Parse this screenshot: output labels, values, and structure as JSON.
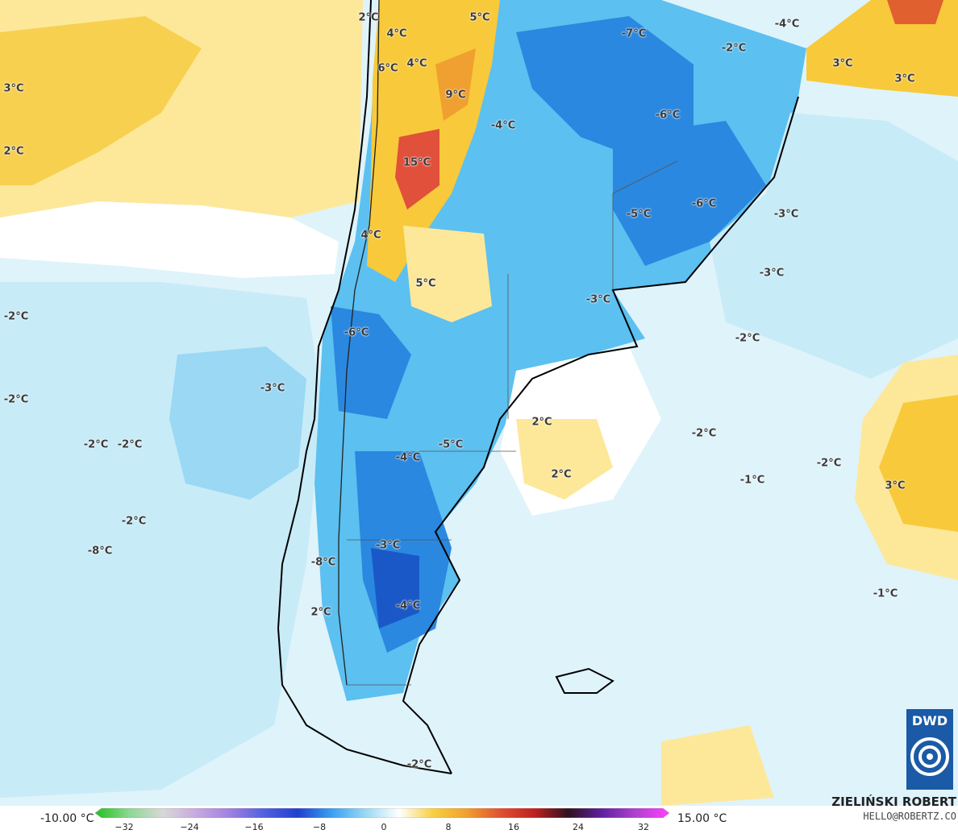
{
  "colors": {
    "warm_light": "#fde89a",
    "warm": "#f8c93a",
    "warm_orange": "#f0a030",
    "hot": "#e0503a",
    "cold_light": "#c8ebf8",
    "cold": "#9ad8f4",
    "cold_mid": "#5cc0f0",
    "cold_deep": "#2a88e0",
    "cold_darkest": "#1a58c8",
    "land_border": "#000000",
    "dwd_blue": "#1a5aa6"
  },
  "labels": [
    {
      "id": "l1",
      "text": "2°C"
    },
    {
      "id": "l2",
      "text": "5°C"
    },
    {
      "id": "l3",
      "text": "4°C"
    },
    {
      "id": "l4",
      "text": "6°C"
    },
    {
      "id": "l5",
      "text": "4°C"
    },
    {
      "id": "l6",
      "text": "3°C"
    },
    {
      "id": "l7",
      "text": "2°C"
    },
    {
      "id": "l8",
      "text": "9°C"
    },
    {
      "id": "l9",
      "text": "15°C"
    },
    {
      "id": "l10",
      "text": "4°C"
    },
    {
      "id": "l11",
      "text": "5°C"
    },
    {
      "id": "l12",
      "text": "-4°C"
    },
    {
      "id": "l13",
      "text": "-7°C"
    },
    {
      "id": "l14",
      "text": "-2°C"
    },
    {
      "id": "l15",
      "text": "-4°C"
    },
    {
      "id": "l16",
      "text": "3°C"
    },
    {
      "id": "l17",
      "text": "3°C"
    },
    {
      "id": "l18",
      "text": "-6°C"
    },
    {
      "id": "l19",
      "text": "-6°C"
    },
    {
      "id": "l20",
      "text": "-5°C"
    },
    {
      "id": "l21",
      "text": "-3°C"
    },
    {
      "id": "l22",
      "text": "-3°C"
    },
    {
      "id": "l23",
      "text": "-3°C"
    },
    {
      "id": "l24",
      "text": "-2°C"
    },
    {
      "id": "l25",
      "text": "-2°C"
    },
    {
      "id": "l26",
      "text": "-6°C"
    },
    {
      "id": "l27",
      "text": "-2°C"
    },
    {
      "id": "l28",
      "text": "-3°C"
    },
    {
      "id": "l29",
      "text": "2°C"
    },
    {
      "id": "l30",
      "text": "-2°C"
    },
    {
      "id": "l31",
      "text": "-2°C"
    },
    {
      "id": "l32",
      "text": "-5°C"
    },
    {
      "id": "l33",
      "text": "-4°C"
    },
    {
      "id": "l34",
      "text": "2°C"
    },
    {
      "id": "l35",
      "text": "-1°C"
    },
    {
      "id": "l36",
      "text": "-2°C"
    },
    {
      "id": "l37",
      "text": "3°C"
    },
    {
      "id": "l38",
      "text": "-2°C"
    },
    {
      "id": "l39",
      "text": "-2°C"
    },
    {
      "id": "l40",
      "text": "-8°C"
    },
    {
      "id": "l41",
      "text": "-3°C"
    },
    {
      "id": "l42",
      "text": "-8°C"
    },
    {
      "id": "l43",
      "text": "-4°C"
    },
    {
      "id": "l44",
      "text": "2°C"
    },
    {
      "id": "l45",
      "text": "-1°C"
    },
    {
      "id": "l46",
      "text": "-2°C"
    }
  ],
  "legend": {
    "min_label": "-10.00 °C",
    "max_label": "15.00 °C",
    "ticks": [
      "−32",
      "−24",
      "−16",
      "−8",
      "0",
      "8",
      "16",
      "24",
      "32"
    ],
    "colorbar_stops": [
      "#22c020",
      "#8ad890",
      "#d8d8d8",
      "#c8a8e0",
      "#a080e0",
      "#5060e0",
      "#2040d0",
      "#3aa0f0",
      "#9ad8f4",
      "#ffffff",
      "#f8d040",
      "#f0a030",
      "#e05030",
      "#c02020",
      "#301020",
      "#6020a0",
      "#b040d0",
      "#ff40ff"
    ]
  },
  "branding": {
    "author": "ZIELIŃSKI ROBERT",
    "email": "HELLO@ROBERTZ.CO",
    "logo_text": "DWD"
  }
}
